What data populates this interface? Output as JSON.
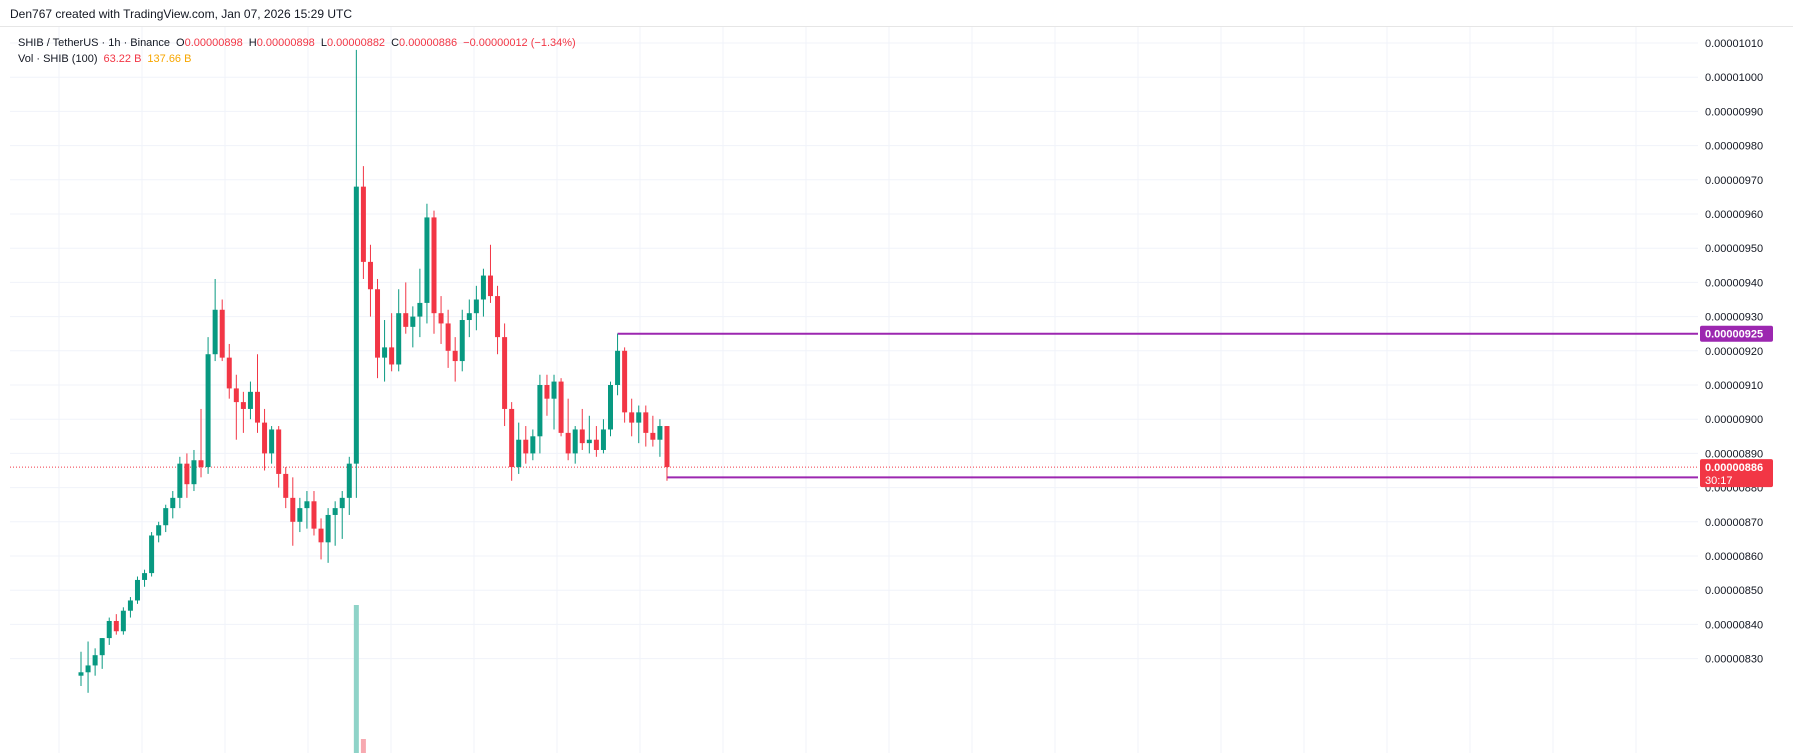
{
  "credit": "Den767 created with TradingView.com, Jan 07, 2026 15:29 UTC",
  "legend": {
    "symbol": "SHIB / TetherUS · 1h · Binance",
    "o_label": "O",
    "o_value": "0.00000898",
    "h_label": "H",
    "h_value": "0.00000898",
    "l_label": "L",
    "l_value": "0.00000882",
    "c_label": "C",
    "c_value": "0.00000886",
    "change": "−0.00000012 (−1.34%)",
    "vol_label": "Vol · SHIB (100)",
    "vol_a": "63.22 B",
    "vol_b": "137.66 B"
  },
  "colors": {
    "up": "#089981",
    "down": "#f23645",
    "grid": "#f0f3fa",
    "level_line": "#9c27b0",
    "price_line": "#f23645",
    "volume_up": "#8fd3c8",
    "volume_down": "#f7a9b0"
  },
  "chart_data": {
    "type": "candlestick",
    "ylim": [
      8.29e-06,
      1.013e-05
    ],
    "y_ticks": [
      "0.00000830",
      "0.00000840",
      "0.00000850",
      "0.00000860",
      "0.00000870",
      "0.00000880",
      "0.00000890",
      "0.00000900",
      "0.00000910",
      "0.00000920",
      "0.00000930",
      "0.00000940",
      "0.00000950",
      "0.00000960",
      "0.00000970",
      "0.00000980",
      "0.00000990",
      "0.00001000",
      "0.00001010"
    ],
    "candles": [
      {
        "o": 8.25e-06,
        "h": 8.32e-06,
        "l": 8.22e-06,
        "c": 8.26e-06
      },
      {
        "o": 8.26e-06,
        "h": 8.35e-06,
        "l": 8.2e-06,
        "c": 8.28e-06
      },
      {
        "o": 8.28e-06,
        "h": 8.33e-06,
        "l": 8.25e-06,
        "c": 8.31e-06
      },
      {
        "o": 8.31e-06,
        "h": 8.36e-06,
        "l": 8.27e-06,
        "c": 8.36e-06
      },
      {
        "o": 8.36e-06,
        "h": 8.42e-06,
        "l": 8.34e-06,
        "c": 8.41e-06
      },
      {
        "o": 8.41e-06,
        "h": 8.43e-06,
        "l": 8.37e-06,
        "c": 8.38e-06
      },
      {
        "o": 8.38e-06,
        "h": 8.45e-06,
        "l": 8.37e-06,
        "c": 8.44e-06
      },
      {
        "o": 8.44e-06,
        "h": 8.48e-06,
        "l": 8.42e-06,
        "c": 8.47e-06
      },
      {
        "o": 8.47e-06,
        "h": 8.54e-06,
        "l": 8.46e-06,
        "c": 8.53e-06
      },
      {
        "o": 8.53e-06,
        "h": 8.56e-06,
        "l": 8.51e-06,
        "c": 8.55e-06
      },
      {
        "o": 8.55e-06,
        "h": 8.67e-06,
        "l": 8.54e-06,
        "c": 8.66e-06
      },
      {
        "o": 8.66e-06,
        "h": 8.7e-06,
        "l": 8.64e-06,
        "c": 8.69e-06
      },
      {
        "o": 8.69e-06,
        "h": 8.75e-06,
        "l": 8.67e-06,
        "c": 8.74e-06
      },
      {
        "o": 8.74e-06,
        "h": 8.79e-06,
        "l": 8.71e-06,
        "c": 8.77e-06
      },
      {
        "o": 8.77e-06,
        "h": 8.89e-06,
        "l": 8.74e-06,
        "c": 8.87e-06
      },
      {
        "o": 8.87e-06,
        "h": 8.9e-06,
        "l": 8.77e-06,
        "c": 8.81e-06
      },
      {
        "o": 8.81e-06,
        "h": 8.91e-06,
        "l": 8.79e-06,
        "c": 8.88e-06
      },
      {
        "o": 8.88e-06,
        "h": 9.03e-06,
        "l": 8.83e-06,
        "c": 8.86e-06
      },
      {
        "o": 8.86e-06,
        "h": 9.24e-06,
        "l": 8.84e-06,
        "c": 9.19e-06
      },
      {
        "o": 9.19e-06,
        "h": 9.41e-06,
        "l": 9.17e-06,
        "c": 9.32e-06
      },
      {
        "o": 9.32e-06,
        "h": 9.35e-06,
        "l": 9.17e-06,
        "c": 9.18e-06
      },
      {
        "o": 9.18e-06,
        "h": 9.22e-06,
        "l": 9.06e-06,
        "c": 9.09e-06
      },
      {
        "o": 9.09e-06,
        "h": 9.13e-06,
        "l": 8.94e-06,
        "c": 9.05e-06
      },
      {
        "o": 9.05e-06,
        "h": 9.08e-06,
        "l": 8.96e-06,
        "c": 9.03e-06
      },
      {
        "o": 9.03e-06,
        "h": 9.11e-06,
        "l": 9e-06,
        "c": 9.08e-06
      },
      {
        "o": 9.08e-06,
        "h": 9.19e-06,
        "l": 8.96e-06,
        "c": 8.99e-06
      },
      {
        "o": 8.99e-06,
        "h": 9.03e-06,
        "l": 8.85e-06,
        "c": 8.9e-06
      },
      {
        "o": 8.9e-06,
        "h": 8.98e-06,
        "l": 8.87e-06,
        "c": 8.97e-06
      },
      {
        "o": 8.97e-06,
        "h": 8.98e-06,
        "l": 8.8e-06,
        "c": 8.84e-06
      },
      {
        "o": 8.84e-06,
        "h": 8.86e-06,
        "l": 8.74e-06,
        "c": 8.77e-06
      },
      {
        "o": 8.77e-06,
        "h": 8.83e-06,
        "l": 8.63e-06,
        "c": 8.7e-06
      },
      {
        "o": 8.7e-06,
        "h": 8.77e-06,
        "l": 8.67e-06,
        "c": 8.74e-06
      },
      {
        "o": 8.74e-06,
        "h": 8.79e-06,
        "l": 8.68e-06,
        "c": 8.76e-06
      },
      {
        "o": 8.76e-06,
        "h": 8.79e-06,
        "l": 8.66e-06,
        "c": 8.68e-06
      },
      {
        "o": 8.68e-06,
        "h": 8.71e-06,
        "l": 8.59e-06,
        "c": 8.64e-06
      },
      {
        "o": 8.64e-06,
        "h": 8.74e-06,
        "l": 8.58e-06,
        "c": 8.72e-06
      },
      {
        "o": 8.72e-06,
        "h": 8.76e-06,
        "l": 8.63e-06,
        "c": 8.74e-06
      },
      {
        "o": 8.74e-06,
        "h": 8.79e-06,
        "l": 8.65e-06,
        "c": 8.77e-06
      },
      {
        "o": 8.77e-06,
        "h": 8.89e-06,
        "l": 8.72e-06,
        "c": 8.87e-06
      },
      {
        "o": 8.87e-06,
        "h": 1.008e-05,
        "l": 8.77e-06,
        "c": 9.68e-06
      },
      {
        "o": 9.68e-06,
        "h": 9.74e-06,
        "l": 9.41e-06,
        "c": 9.46e-06
      },
      {
        "o": 9.46e-06,
        "h": 9.51e-06,
        "l": 9.3e-06,
        "c": 9.38e-06
      },
      {
        "o": 9.38e-06,
        "h": 9.41e-06,
        "l": 9.12e-06,
        "c": 9.18e-06
      },
      {
        "o": 9.18e-06,
        "h": 9.29e-06,
        "l": 9.11e-06,
        "c": 9.21e-06
      },
      {
        "o": 9.21e-06,
        "h": 9.31e-06,
        "l": 9.14e-06,
        "c": 9.16e-06
      },
      {
        "o": 9.16e-06,
        "h": 9.38e-06,
        "l": 9.14e-06,
        "c": 9.31e-06
      },
      {
        "o": 9.31e-06,
        "h": 9.4e-06,
        "l": 9.25e-06,
        "c": 9.27e-06
      },
      {
        "o": 9.27e-06,
        "h": 9.33e-06,
        "l": 9.21e-06,
        "c": 9.3e-06
      },
      {
        "o": 9.3e-06,
        "h": 9.44e-06,
        "l": 9.24e-06,
        "c": 9.34e-06
      },
      {
        "o": 9.34e-06,
        "h": 9.63e-06,
        "l": 9.28e-06,
        "c": 9.59e-06
      },
      {
        "o": 9.59e-06,
        "h": 9.61e-06,
        "l": 9.25e-06,
        "c": 9.31e-06
      },
      {
        "o": 9.31e-06,
        "h": 9.36e-06,
        "l": 9.22e-06,
        "c": 9.28e-06
      },
      {
        "o": 9.28e-06,
        "h": 9.32e-06,
        "l": 9.15e-06,
        "c": 9.2e-06
      },
      {
        "o": 9.2e-06,
        "h": 9.24e-06,
        "l": 9.11e-06,
        "c": 9.17e-06
      },
      {
        "o": 9.17e-06,
        "h": 9.32e-06,
        "l": 9.14e-06,
        "c": 9.29e-06
      },
      {
        "o": 9.29e-06,
        "h": 9.35e-06,
        "l": 9.24e-06,
        "c": 9.31e-06
      },
      {
        "o": 9.31e-06,
        "h": 9.39e-06,
        "l": 9.26e-06,
        "c": 9.35e-06
      },
      {
        "o": 9.35e-06,
        "h": 9.44e-06,
        "l": 9.3e-06,
        "c": 9.42e-06
      },
      {
        "o": 9.42e-06,
        "h": 9.51e-06,
        "l": 9.34e-06,
        "c": 9.36e-06
      },
      {
        "o": 9.36e-06,
        "h": 9.39e-06,
        "l": 9.19e-06,
        "c": 9.24e-06
      },
      {
        "o": 9.24e-06,
        "h": 9.28e-06,
        "l": 8.98e-06,
        "c": 9.03e-06
      },
      {
        "o": 9.03e-06,
        "h": 9.05e-06,
        "l": 8.82e-06,
        "c": 8.86e-06
      },
      {
        "o": 8.86e-06,
        "h": 8.99e-06,
        "l": 8.84e-06,
        "c": 8.94e-06
      },
      {
        "o": 8.94e-06,
        "h": 8.98e-06,
        "l": 8.87e-06,
        "c": 8.9e-06
      },
      {
        "o": 8.9e-06,
        "h": 8.97e-06,
        "l": 8.88e-06,
        "c": 8.95e-06
      },
      {
        "o": 8.95e-06,
        "h": 9.13e-06,
        "l": 8.9e-06,
        "c": 9.1e-06
      },
      {
        "o": 9.1e-06,
        "h": 9.13e-06,
        "l": 9.01e-06,
        "c": 9.06e-06
      },
      {
        "o": 9.06e-06,
        "h": 9.13e-06,
        "l": 8.97e-06,
        "c": 9.11e-06
      },
      {
        "o": 9.11e-06,
        "h": 9.12e-06,
        "l": 8.95e-06,
        "c": 8.96e-06
      },
      {
        "o": 8.96e-06,
        "h": 9.06e-06,
        "l": 8.88e-06,
        "c": 8.9e-06
      },
      {
        "o": 8.9e-06,
        "h": 8.98e-06,
        "l": 8.87e-06,
        "c": 8.97e-06
      },
      {
        "o": 8.97e-06,
        "h": 9.03e-06,
        "l": 8.91e-06,
        "c": 8.93e-06
      },
      {
        "o": 8.93e-06,
        "h": 9.01e-06,
        "l": 8.9e-06,
        "c": 8.94e-06
      },
      {
        "o": 8.94e-06,
        "h": 8.98e-06,
        "l": 8.89e-06,
        "c": 8.91e-06
      },
      {
        "o": 8.91e-06,
        "h": 9e-06,
        "l": 8.9e-06,
        "c": 8.97e-06
      },
      {
        "o": 8.97e-06,
        "h": 9.11e-06,
        "l": 8.95e-06,
        "c": 9.1e-06
      },
      {
        "o": 9.1e-06,
        "h": 9.25e-06,
        "l": 9.07e-06,
        "c": 9.2e-06
      },
      {
        "o": 9.2e-06,
        "h": 9.21e-06,
        "l": 8.99e-06,
        "c": 9.02e-06
      },
      {
        "o": 9.02e-06,
        "h": 9.06e-06,
        "l": 8.95e-06,
        "c": 8.99e-06
      },
      {
        "o": 8.99e-06,
        "h": 9.04e-06,
        "l": 8.93e-06,
        "c": 9.02e-06
      },
      {
        "o": 9.02e-06,
        "h": 9.04e-06,
        "l": 8.92e-06,
        "c": 8.96e-06
      },
      {
        "o": 8.96e-06,
        "h": 9.01e-06,
        "l": 8.92e-06,
        "c": 8.94e-06
      },
      {
        "o": 8.94e-06,
        "h": 9e-06,
        "l": 8.89e-06,
        "c": 8.98e-06
      },
      {
        "o": 8.98e-06,
        "h": 8.98e-06,
        "l": 8.82e-06,
        "c": 8.86e-06
      }
    ],
    "volume": [
      {
        "i": 39,
        "v": 0.74,
        "dir": "up"
      },
      {
        "i": 40,
        "v": 0.07,
        "dir": "down"
      }
    ],
    "levels": [
      {
        "price": 9.25e-06,
        "label": "0.00000925",
        "from_index": 76
      },
      {
        "price": 8.83e-06,
        "label": "0.00000883",
        "from_index": 83
      }
    ],
    "last_price": {
      "price": 8.86e-06,
      "label": "0.00000886",
      "countdown": "30:17"
    }
  }
}
